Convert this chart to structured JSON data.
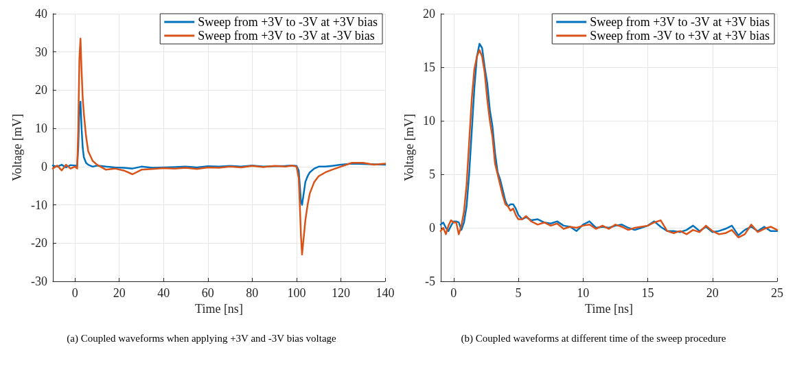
{
  "chart_data": [
    {
      "type": "line",
      "xlabel": "Time [ns]",
      "ylabel": "Voltage [mV]",
      "xlim": [
        -10,
        140
      ],
      "xticks": [
        0,
        20,
        40,
        60,
        80,
        100,
        120,
        140
      ],
      "ylim": [
        -30,
        40
      ],
      "yticks": [
        -30,
        -20,
        -10,
        0,
        10,
        20,
        30,
        40
      ],
      "grid": true,
      "legend": "top right",
      "line_style": "solid",
      "marker": "none",
      "x": [
        -10,
        -8,
        -6,
        -4,
        -2,
        0,
        1,
        1.5,
        2,
        2.5,
        3,
        3.5,
        4,
        5,
        6,
        8,
        10,
        14,
        18,
        22,
        26,
        30,
        35,
        40,
        45,
        50,
        55,
        60,
        65,
        70,
        75,
        80,
        85,
        90,
        95,
        98,
        100,
        101,
        101.5,
        102,
        102.5,
        103,
        104,
        105,
        106,
        108,
        110,
        113,
        116,
        120,
        125,
        130,
        135,
        140
      ],
      "series": [
        {
          "name": "Sweep from +3V to -3V at +3V bias",
          "color": "#0072bd",
          "values": [
            0.3,
            0,
            0.5,
            -0.2,
            0.4,
            0.3,
            0.2,
            5,
            15,
            17,
            10,
            5,
            2.5,
            1,
            0.5,
            0,
            0.3,
            0,
            -0.2,
            -0.3,
            -0.5,
            0,
            -0.3,
            -0.2,
            -0.1,
            0,
            -0.2,
            0.1,
            0,
            0.2,
            0,
            0.3,
            0,
            0.1,
            0.2,
            0.3,
            0.2,
            -1,
            -5,
            -9,
            -10,
            -8,
            -4,
            -2.5,
            -1.5,
            -0.5,
            0,
            0,
            0.2,
            0.5,
            0.8,
            0.7,
            0.6,
            0.5
          ]
        },
        {
          "name": "Sweep from +3V to -3V at -3V bias",
          "color": "#d95319",
          "values": [
            -0.5,
            0.3,
            -1,
            0.5,
            -0.5,
            0,
            -0.5,
            10,
            28,
            33.5,
            25,
            18,
            14,
            8,
            4,
            1.5,
            0.5,
            -0.8,
            -0.5,
            -1,
            -2,
            -0.8,
            -0.6,
            -0.4,
            -0.5,
            -0.3,
            -0.6,
            -0.2,
            -0.3,
            0,
            -0.2,
            0.2,
            -0.1,
            0.2,
            0,
            0.3,
            0,
            -3,
            -10,
            -18,
            -23,
            -20,
            -14,
            -10,
            -7,
            -4,
            -2.5,
            -1.5,
            -0.8,
            0,
            1,
            1,
            0.5,
            0.8
          ]
        }
      ],
      "annotations": [
        "(a)    Coupled waveforms when applying +3V and -3V bias voltage"
      ]
    },
    {
      "type": "line",
      "xlabel": "Time [ns]",
      "ylabel": "Voltage [mV]",
      "xlim": [
        -1,
        25
      ],
      "xticks": [
        0,
        5,
        10,
        15,
        20,
        25
      ],
      "ylim": [
        -5,
        20
      ],
      "yticks": [
        -5,
        0,
        5,
        10,
        15,
        20
      ],
      "grid": true,
      "legend": "top right",
      "line_style": "solid",
      "marker": "none",
      "x": [
        -1,
        -0.8,
        -0.6,
        -0.4,
        -0.2,
        0,
        0.2,
        0.4,
        0.6,
        0.8,
        1,
        1.2,
        1.4,
        1.6,
        1.8,
        2,
        2.2,
        2.4,
        2.6,
        2.8,
        3,
        3.2,
        3.4,
        3.6,
        3.8,
        4,
        4.2,
        4.4,
        4.6,
        4.8,
        5,
        5.3,
        5.6,
        6,
        6.5,
        7,
        7.5,
        8,
        8.5,
        9,
        9.5,
        10,
        10.5,
        11,
        11.5,
        12,
        12.5,
        13,
        13.5,
        14,
        14.5,
        15,
        15.5,
        16,
        16.5,
        17,
        17.5,
        18,
        18.5,
        19,
        19.5,
        20,
        20.5,
        21,
        21.5,
        22,
        22.5,
        23,
        23.5,
        24,
        24.5,
        25
      ],
      "series": [
        {
          "name": "Sweep from +3V to -3V at +3V bias",
          "color": "#0072bd",
          "values": [
            0.3,
            0.5,
            0,
            -0.3,
            0.2,
            0.6,
            0.6,
            0.5,
            -0.2,
            0.5,
            2,
            5,
            9,
            13,
            16,
            17.2,
            16.8,
            15,
            13.5,
            11,
            9.5,
            7,
            5.2,
            4.5,
            3.5,
            2.5,
            2,
            2.2,
            2.2,
            1.8,
            1.2,
            0.8,
            1,
            0.7,
            0.8,
            0.5,
            0.4,
            0.6,
            0.2,
            0.1,
            -0.3,
            0.3,
            0.6,
            0,
            0.1,
            0,
            0.2,
            0.3,
            0,
            -0.2,
            0,
            0.2,
            0.6,
            0.1,
            -0.3,
            -0.3,
            -0.4,
            -0.2,
            0.2,
            -0.3,
            0.1,
            -0.4,
            -0.3,
            -0.1,
            0.2,
            -0.7,
            -0.2,
            0.1,
            -0.3,
            0.1,
            -0.3,
            -0.3
          ]
        },
        {
          "name": "Sweep from -3V to +3V at +3V bias",
          "color": "#d95319",
          "values": [
            -0.3,
            0,
            -0.6,
            0.2,
            0.7,
            0.5,
            0.5,
            -0.6,
            0.2,
            1.5,
            4,
            8,
            12,
            14.8,
            16,
            16.6,
            16,
            14.5,
            12,
            10,
            8.5,
            6,
            5,
            4,
            3,
            2.2,
            2,
            1.6,
            1.8,
            1.2,
            0.8,
            0.8,
            1.1,
            0.6,
            0.3,
            0.5,
            0.2,
            0.4,
            -0.1,
            0.1,
            0,
            0.2,
            0.3,
            -0.1,
            0.2,
            -0.1,
            0.3,
            0.1,
            -0.2,
            0,
            0.1,
            0.2,
            0.5,
            0.7,
            -0.3,
            -0.5,
            -0.3,
            -0.6,
            -0.2,
            -0.4,
            0.2,
            -0.3,
            -0.6,
            -0.5,
            -0.2,
            -0.9,
            -0.6,
            0.3,
            -0.4,
            -0.1,
            0.1,
            -0.2
          ]
        }
      ],
      "annotations": [
        "(b)    Coupled waveforms at different time of the sweep procedure"
      ]
    }
  ]
}
